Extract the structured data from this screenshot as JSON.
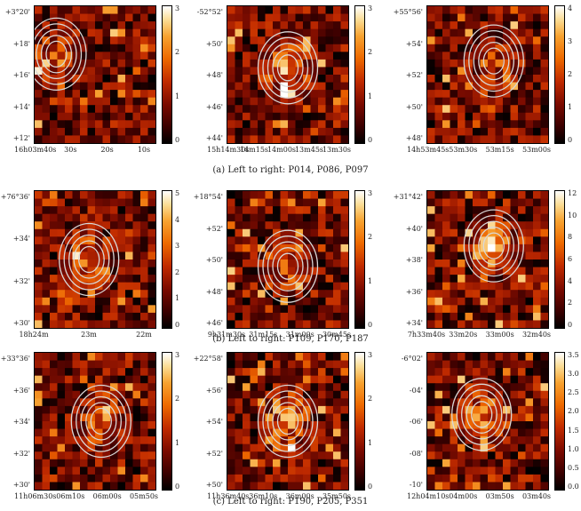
{
  "figure": {
    "captions": [
      "(a) Left to right: P014, P086, P097",
      "(b) Left to right: P109, P170, P187",
      "(c) Left to right: P190, P205, P351"
    ],
    "panels": [
      {
        "id": "P014",
        "yticks": [
          "+3°20'",
          "+18'",
          "+16'",
          "+14'",
          "+12'"
        ],
        "xticks": [
          "16h03m40s",
          "30s",
          "20s",
          "10s"
        ],
        "cbar": [
          "3",
          "2",
          "1",
          "0"
        ],
        "hot": [
          0.18,
          0.35,
          0.5
        ],
        "seed": 11
      },
      {
        "id": "P086",
        "yticks": [
          "-52°52'",
          "+50'",
          "+48'",
          "+46'",
          "+44'"
        ],
        "xticks": [
          "15h14m30s",
          "14m15s",
          "14m00s",
          "13m45s",
          "13m30s"
        ],
        "cbar": [
          "3",
          "2",
          "1",
          "0"
        ],
        "hot": [
          0.5,
          0.45,
          0.8
        ],
        "seed": 23
      },
      {
        "id": "P097",
        "yticks": [
          "+55°56'",
          "+54'",
          "+52'",
          "+50'",
          "+48'"
        ],
        "xticks": [
          "14h53m45s",
          "53m30s",
          "53m15s",
          "53m00s"
        ],
        "cbar": [
          "4",
          "3",
          "2",
          "1",
          "0"
        ],
        "hot": [
          0.55,
          0.4,
          0.5
        ],
        "seed": 37
      },
      {
        "id": "P109",
        "yticks": [
          "+76°36'",
          "+34'",
          "+32'",
          "+30'"
        ],
        "xticks": [
          "18h24m",
          "23m",
          "22m"
        ],
        "cbar": [
          "5",
          "4",
          "3",
          "2",
          "1",
          "0"
        ],
        "hot": [
          0.45,
          0.5,
          0.55
        ],
        "seed": 41
      },
      {
        "id": "P170",
        "yticks": [
          "+18°54'",
          "+52'",
          "+50'",
          "+48'",
          "+46'"
        ],
        "xticks": [
          "9h31m30s",
          "31m15s",
          "31m00s",
          "30m45s"
        ],
        "cbar": [
          "3",
          "2",
          "1",
          "0"
        ],
        "hot": [
          0.5,
          0.55,
          0.6
        ],
        "seed": 53
      },
      {
        "id": "P187",
        "yticks": [
          "+31°42'",
          "+40'",
          "+38'",
          "+36'",
          "+34'"
        ],
        "xticks": [
          "7h33m40s",
          "33m20s",
          "33m00s",
          "32m40s"
        ],
        "cbar": [
          "12",
          "10",
          "8",
          "6",
          "4",
          "2",
          "0"
        ],
        "hot": [
          0.55,
          0.4,
          0.95
        ],
        "seed": 67
      },
      {
        "id": "P190",
        "yticks": [
          "+33°36'",
          "+36'",
          "+34'",
          "+32'",
          "+30'"
        ],
        "xticks": [
          "11h06m30s",
          "06m10s",
          "06m00s",
          "05m50s"
        ],
        "cbar": [
          "3",
          "2",
          "1",
          "0"
        ],
        "hot": [
          0.55,
          0.5,
          0.6
        ],
        "seed": 71
      },
      {
        "id": "P205",
        "yticks": [
          "+22°58'",
          "+56'",
          "+54'",
          "+52'",
          "+50'"
        ],
        "xticks": [
          "11h36m40s",
          "36m10s",
          "36m00s",
          "35m50s"
        ],
        "cbar": [
          "3",
          "2",
          "1",
          "0"
        ],
        "hot": [
          0.5,
          0.5,
          0.7
        ],
        "seed": 83
      },
      {
        "id": "P351",
        "yticks": [
          "-6°02'",
          "-04'",
          "-06'",
          "-08'",
          "-10'"
        ],
        "xticks": [
          "12h04m10s",
          "04m00s",
          "03m50s",
          "03m40s"
        ],
        "cbar": [
          "3.5",
          "3.0",
          "2.5",
          "2.0",
          "1.5",
          "1.0",
          "0.5",
          "0.0"
        ],
        "hot": [
          0.45,
          0.45,
          0.7
        ],
        "seed": 97
      }
    ]
  }
}
